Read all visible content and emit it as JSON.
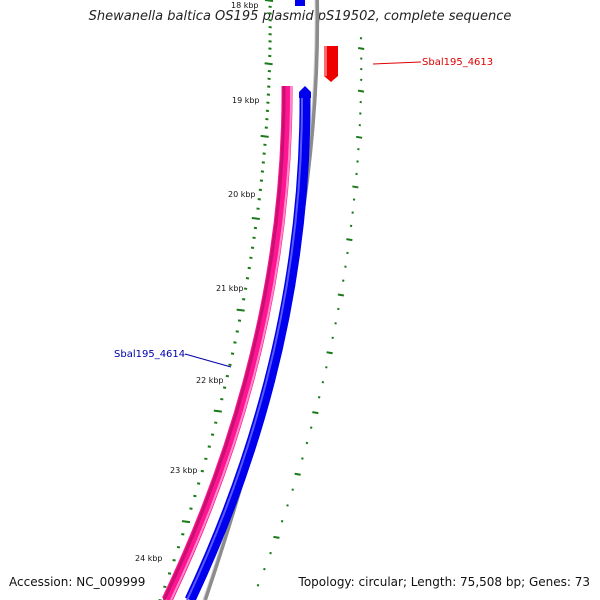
{
  "title": "Shewanella baltica OS195 plasmid pS19502, complete sequence",
  "footer": {
    "accession": "Accession: NC_009999",
    "summary": "Topology: circular; Length: 75,508 bp; Genes: 73"
  },
  "colors": {
    "backbone": "#8c8c8c",
    "forward_gene": "#0000ee",
    "reverse_gene": "#ff1493",
    "reverse_small_gene": "#ee0000",
    "tick_marks": "#1a7a1a",
    "label_forward": "#0000aa",
    "label_reverse": "#dd0000"
  },
  "ticks": [
    {
      "label": "18 kbp"
    },
    {
      "label": "19 kbp"
    },
    {
      "label": "20 kbp"
    },
    {
      "label": "21 kbp"
    },
    {
      "label": "22 kbp"
    },
    {
      "label": "23 kbp"
    },
    {
      "label": "24 kbp"
    }
  ],
  "genes": [
    {
      "label": "Sbal195_4613",
      "strand": "reverse"
    },
    {
      "label": "Sbal195_4614",
      "strand": "forward"
    }
  ]
}
